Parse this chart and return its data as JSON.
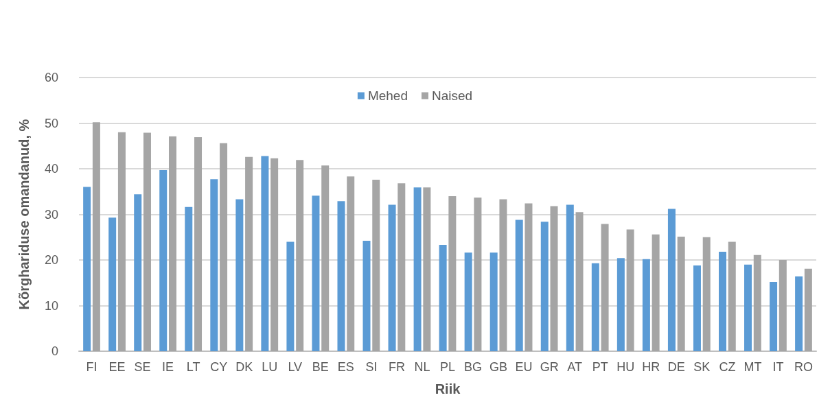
{
  "chart_data": {
    "type": "bar",
    "xlabel": "Riik",
    "ylabel": "Kõrghariduse omandanud, %",
    "categories": [
      "FI",
      "EE",
      "SE",
      "IE",
      "LT",
      "CY",
      "DK",
      "LU",
      "LV",
      "BE",
      "ES",
      "SI",
      "FR",
      "NL",
      "PL",
      "BG",
      "GB",
      "EU",
      "GR",
      "AT",
      "PT",
      "HU",
      "HR",
      "DE",
      "SK",
      "CZ",
      "MT",
      "IT",
      "RO"
    ],
    "series": [
      {
        "name": "Mehed",
        "color": "#5b9bd5",
        "values": [
          36,
          29.3,
          34.4,
          39.7,
          31.6,
          37.7,
          33.3,
          42.8,
          24,
          34.1,
          32.9,
          24.2,
          32.1,
          35.9,
          23.3,
          21.6,
          21.6,
          28.8,
          28.4,
          32.1,
          19.3,
          20.4,
          20.2,
          31.2,
          18.8,
          21.8,
          19,
          15.2,
          16.4
        ]
      },
      {
        "name": "Naised",
        "color": "#a5a5a5",
        "values": [
          50.2,
          48,
          47.9,
          47.1,
          46.9,
          45.6,
          42.6,
          42.3,
          41.9,
          40.7,
          38.3,
          37.6,
          36.8,
          35.9,
          34,
          33.7,
          33.3,
          32.4,
          31.8,
          30.5,
          27.9,
          26.7,
          25.6,
          25.1,
          25,
          24,
          21.1,
          20,
          18.1
        ]
      }
    ],
    "ylim": [
      0,
      60
    ],
    "yticks": [
      0,
      10,
      20,
      30,
      40,
      50,
      60
    ],
    "grid": "y",
    "legend": "top"
  }
}
